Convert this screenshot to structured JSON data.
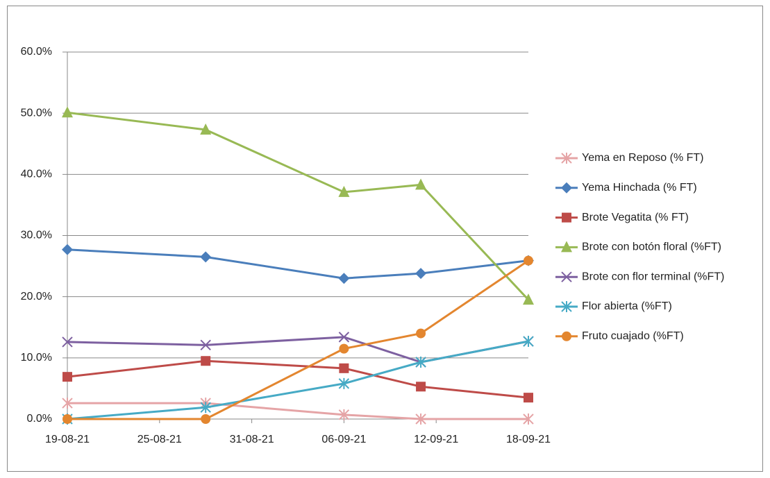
{
  "chart_data": {
    "type": "line",
    "x": [
      "19-08-21",
      "28-08-21",
      "06-09-21",
      "11-09-21",
      "18-09-21"
    ],
    "xlim": [
      "19-08-21",
      "18-09-21"
    ],
    "xticks": [
      "19-08-21",
      "25-08-21",
      "31-08-21",
      "06-09-21",
      "12-09-21",
      "18-09-21"
    ],
    "ylim": [
      0,
      60
    ],
    "yticks": [
      {
        "value": 0,
        "label": "0.0%"
      },
      {
        "value": 10,
        "label": "10.0%"
      },
      {
        "value": 20,
        "label": "20.0%"
      },
      {
        "value": 30,
        "label": "30.0%"
      },
      {
        "value": 40,
        "label": "40.0%"
      },
      {
        "value": 50,
        "label": "50.0%"
      },
      {
        "value": 60,
        "label": "60.0%"
      }
    ],
    "grid": true,
    "legend": "right",
    "series": [
      {
        "name": "Yema en Reposo (% FT)",
        "color": "#e5a4a6",
        "marker": "asterisk",
        "values": [
          2.6,
          2.6,
          0.7,
          0,
          0
        ]
      },
      {
        "name": "Yema Hinchada (% FT)",
        "color": "#4a7ebb",
        "marker": "diamond",
        "values": [
          27.7,
          26.5,
          23.0,
          23.8,
          25.9
        ]
      },
      {
        "name": "Brote Vegatita (% FT)",
        "color": "#be4b48",
        "marker": "square",
        "values": [
          6.9,
          9.5,
          8.3,
          5.3,
          3.5
        ]
      },
      {
        "name": "Brote con botón floral (%FT)",
        "color": "#98b954",
        "marker": "triangle",
        "values": [
          50.1,
          47.3,
          37.1,
          38.3,
          19.5
        ]
      },
      {
        "name": "Brote con flor terminal (%FT)",
        "color": "#7d60a0",
        "marker": "x",
        "values": [
          12.6,
          12.1,
          13.4,
          9.3,
          12.7
        ]
      },
      {
        "name": "Flor abierta (%FT)",
        "color": "#46aac5",
        "marker": "asterisk",
        "values": [
          0,
          1.9,
          5.8,
          9.3,
          12.7
        ]
      },
      {
        "name": "Fruto cuajado (%FT)",
        "color": "#e3862f",
        "marker": "circle",
        "values": [
          0,
          0,
          11.5,
          14.0,
          25.9
        ]
      }
    ]
  }
}
